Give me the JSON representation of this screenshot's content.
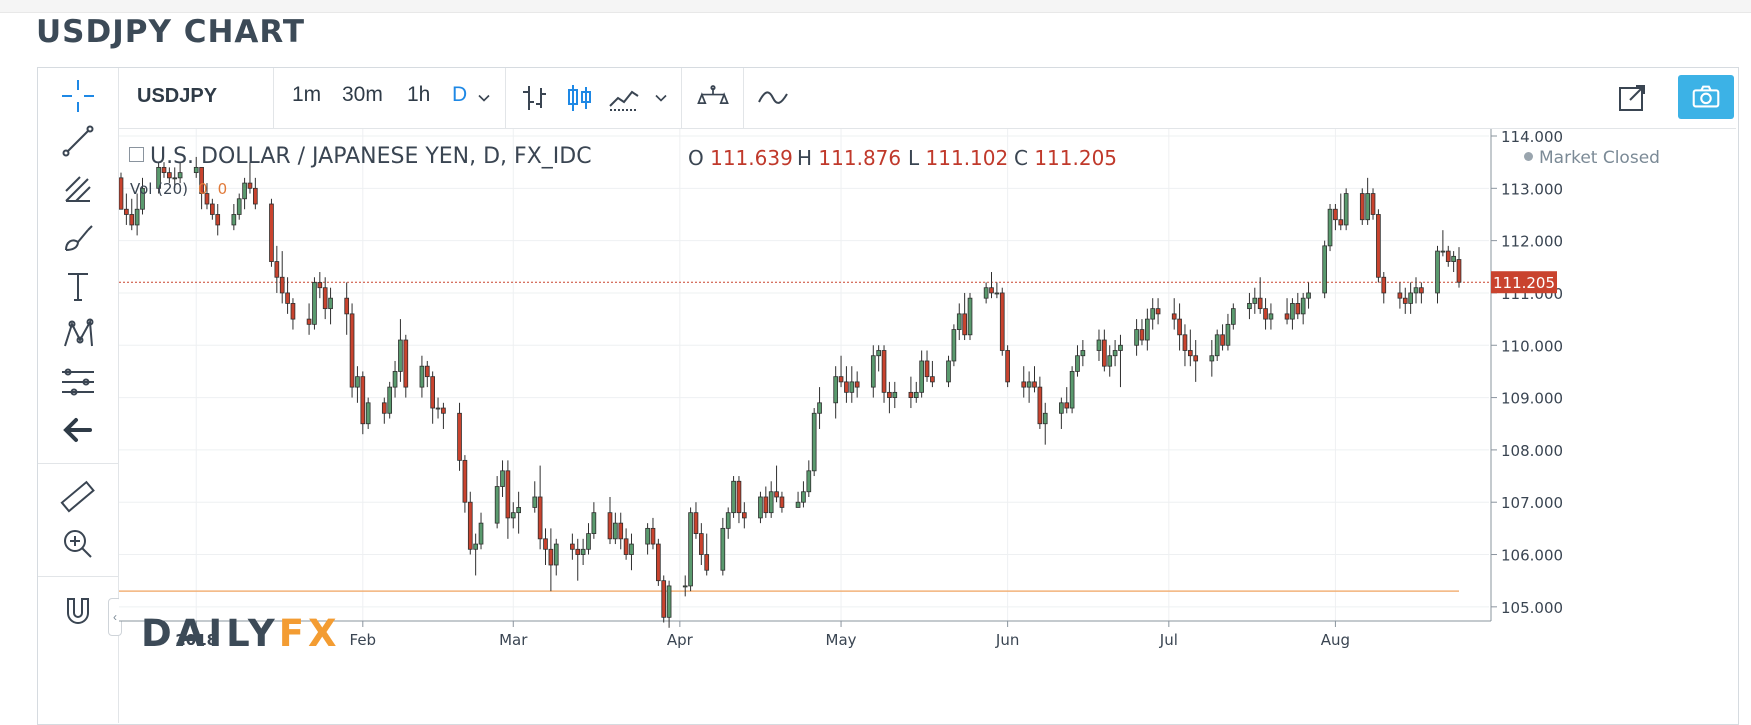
{
  "page": {
    "title": "USDJPY CHART"
  },
  "toolbar": {
    "symbol": "USDJPY",
    "timeframes": [
      "1m",
      "30m",
      "1h",
      "D"
    ],
    "active_timeframe": "D",
    "icons": [
      "chevron-down-icon",
      "bar-chart-icon",
      "candlestick-icon",
      "area-chart-icon",
      "chevron-down-icon",
      "compare-icon",
      "indicator-icon",
      "popout-icon",
      "camera-icon"
    ]
  },
  "left_tools": {
    "icons": [
      "crosshair-icon",
      "trendline-icon",
      "pitchfork-icon",
      "brush-icon",
      "text-icon",
      "pattern-icon",
      "fib-icon",
      "back-arrow-icon",
      "ruler-icon",
      "zoom-icon",
      "magnet-icon"
    ],
    "collapse_glyph": "‹"
  },
  "legend": {
    "series_title": "U.S. DOLLAR / JAPANESE YEN, D, FX_IDC",
    "open_label": "O",
    "open": "111.639",
    "high_label": "H",
    "high": "111.876",
    "low_label": "L",
    "low": "111.102",
    "close_label": "C",
    "close": "111.205",
    "volume_label": "Vol (20)",
    "volume_values": [
      "0",
      "0"
    ],
    "market_status": "Market Closed"
  },
  "logo": {
    "part1": "DAILY",
    "part2": "FX"
  },
  "colors": {
    "up": "#5a9a6e",
    "down": "#c9432e",
    "price_line": "#c9432e",
    "horizontal_line": "#f2b27a",
    "accent": "#1e88e5"
  },
  "chart_data": {
    "type": "candlestick",
    "title": "U.S. DOLLAR / JAPANESE YEN, D, FX_IDC",
    "x_ticks": [
      "2018",
      "Feb",
      "Mar",
      "Apr",
      "May",
      "Jun",
      "Jul",
      "Aug"
    ],
    "y_ticks": [
      "114.000",
      "113.000",
      "112.000",
      "111.000",
      "110.000",
      "109.000",
      "108.000",
      "107.000",
      "106.000",
      "105.000"
    ],
    "ylim": [
      104.5,
      114.0
    ],
    "last_price": 111.205,
    "last_price_label": "111.205",
    "horizontal_line": 105.3,
    "grid": true,
    "legend_position": "top-left",
    "candles": [
      [
        "2017-12-18",
        113.2,
        113.3,
        112.6,
        112.6
      ],
      [
        "2017-12-19",
        112.6,
        112.9,
        112.3,
        112.5
      ],
      [
        "2017-12-20",
        112.5,
        112.8,
        112.2,
        112.3
      ],
      [
        "2017-12-21",
        112.3,
        112.9,
        112.1,
        112.6
      ],
      [
        "2017-12-22",
        112.6,
        113.2,
        112.5,
        113.0
      ],
      [
        "2017-12-25",
        113.0,
        113.5,
        112.9,
        113.4
      ],
      [
        "2017-12-26",
        113.4,
        113.5,
        113.2,
        113.3
      ],
      [
        "2017-12-27",
        113.3,
        113.4,
        113.1,
        113.2
      ],
      [
        "2017-12-28",
        113.2,
        113.4,
        113.0,
        113.2
      ],
      [
        "2017-12-29",
        113.2,
        113.5,
        113.1,
        113.3
      ],
      [
        "2018-01-01",
        113.3,
        113.6,
        113.2,
        113.4
      ],
      [
        "2018-01-02",
        113.4,
        113.4,
        112.6,
        112.9
      ],
      [
        "2018-01-03",
        112.9,
        113.1,
        112.6,
        112.7
      ],
      [
        "2018-01-04",
        112.7,
        112.8,
        112.4,
        112.5
      ],
      [
        "2018-01-05",
        112.5,
        112.7,
        112.1,
        112.3
      ],
      [
        "2018-01-08",
        112.3,
        112.7,
        112.2,
        112.5
      ],
      [
        "2018-01-09",
        112.5,
        112.9,
        112.4,
        112.8
      ],
      [
        "2018-01-10",
        112.8,
        113.2,
        112.6,
        113.1
      ],
      [
        "2018-01-11",
        113.1,
        113.5,
        112.9,
        113.0
      ],
      [
        "2018-01-12",
        113.0,
        113.2,
        112.6,
        112.7
      ],
      [
        "2018-01-15",
        112.7,
        112.8,
        111.5,
        111.6
      ],
      [
        "2018-01-16",
        111.6,
        111.9,
        111.0,
        111.3
      ],
      [
        "2018-01-17",
        111.3,
        111.8,
        110.8,
        111.0
      ],
      [
        "2018-01-18",
        111.0,
        111.3,
        110.6,
        110.8
      ],
      [
        "2018-01-19",
        110.8,
        110.9,
        110.3,
        110.5
      ],
      [
        "2018-01-22",
        110.5,
        110.8,
        110.2,
        110.4
      ],
      [
        "2018-01-23",
        110.4,
        111.3,
        110.3,
        111.2
      ],
      [
        "2018-01-24",
        111.2,
        111.4,
        110.9,
        111.1
      ],
      [
        "2018-01-25",
        111.1,
        111.3,
        110.5,
        110.7
      ],
      [
        "2018-01-26",
        110.7,
        111.1,
        110.4,
        110.9
      ],
      [
        "2018-01-29",
        110.9,
        111.2,
        110.2,
        110.6
      ],
      [
        "2018-01-30",
        110.6,
        110.8,
        109.0,
        109.2
      ],
      [
        "2018-01-31",
        109.2,
        109.6,
        108.9,
        109.4
      ],
      [
        "2018-02-01",
        109.4,
        109.5,
        108.3,
        108.5
      ],
      [
        "2018-02-02",
        108.5,
        109.0,
        108.4,
        108.9
      ],
      [
        "2018-02-05",
        108.9,
        109.0,
        108.5,
        108.7
      ],
      [
        "2018-02-06",
        108.7,
        109.3,
        108.6,
        109.2
      ],
      [
        "2018-02-07",
        109.2,
        109.7,
        109.0,
        109.5
      ],
      [
        "2018-02-08",
        109.5,
        110.5,
        109.3,
        110.1
      ],
      [
        "2018-02-09",
        110.1,
        110.2,
        109.0,
        109.2
      ],
      [
        "2018-02-12",
        109.2,
        109.8,
        109.0,
        109.6
      ],
      [
        "2018-02-13",
        109.6,
        109.7,
        109.2,
        109.4
      ],
      [
        "2018-02-14",
        109.4,
        109.5,
        108.5,
        108.8
      ],
      [
        "2018-02-15",
        108.8,
        109.0,
        108.6,
        108.8
      ],
      [
        "2018-02-16",
        108.8,
        108.9,
        108.4,
        108.7
      ],
      [
        "2018-02-19",
        108.7,
        108.9,
        107.6,
        107.8
      ],
      [
        "2018-02-20",
        107.8,
        107.9,
        106.8,
        107.0
      ],
      [
        "2018-02-21",
        107.0,
        107.2,
        106.0,
        106.1
      ],
      [
        "2018-02-22",
        106.1,
        106.4,
        105.6,
        106.2
      ],
      [
        "2018-02-23",
        106.2,
        106.8,
        106.1,
        106.6
      ],
      [
        "2018-02-26",
        106.6,
        107.5,
        106.5,
        107.3
      ],
      [
        "2018-02-27",
        107.3,
        107.8,
        107.1,
        107.6
      ],
      [
        "2018-02-28",
        107.6,
        107.8,
        106.3,
        106.7
      ],
      [
        "2018-03-01",
        106.7,
        107.0,
        106.5,
        106.8
      ],
      [
        "2018-03-02",
        106.8,
        107.2,
        106.4,
        106.9
      ],
      [
        "2018-03-05",
        106.9,
        107.4,
        106.8,
        107.1
      ],
      [
        "2018-03-06",
        107.1,
        107.7,
        106.1,
        106.3
      ],
      [
        "2018-03-07",
        106.3,
        106.5,
        105.8,
        106.1
      ],
      [
        "2018-03-08",
        106.1,
        106.5,
        105.3,
        105.8
      ],
      [
        "2018-03-09",
        105.8,
        106.3,
        105.6,
        106.2
      ],
      [
        "2018-03-12",
        106.2,
        106.4,
        105.9,
        106.1
      ],
      [
        "2018-03-13",
        106.1,
        106.3,
        105.5,
        106.0
      ],
      [
        "2018-03-14",
        106.0,
        106.3,
        105.8,
        106.1
      ],
      [
        "2018-03-15",
        106.1,
        106.6,
        106.0,
        106.4
      ],
      [
        "2018-03-16",
        106.4,
        107.0,
        106.3,
        106.8
      ],
      [
        "2018-03-19",
        106.8,
        107.1,
        106.2,
        106.3
      ],
      [
        "2018-03-20",
        106.3,
        106.8,
        106.2,
        106.6
      ],
      [
        "2018-03-21",
        106.6,
        106.8,
        106.1,
        106.3
      ],
      [
        "2018-03-22",
        106.3,
        106.5,
        105.9,
        106.0
      ],
      [
        "2018-03-23",
        106.0,
        106.4,
        105.7,
        106.2
      ],
      [
        "2018-03-26",
        106.2,
        106.6,
        106.0,
        106.5
      ],
      [
        "2018-03-27",
        106.5,
        106.7,
        106.1,
        106.2
      ],
      [
        "2018-03-28",
        106.2,
        106.3,
        105.4,
        105.5
      ],
      [
        "2018-03-29",
        105.5,
        105.6,
        104.7,
        104.8
      ],
      [
        "2018-03-30",
        104.8,
        105.5,
        104.6,
        105.4
      ],
      [
        "2018-04-02",
        105.4,
        105.6,
        105.2,
        105.4
      ],
      [
        "2018-04-03",
        105.4,
        106.9,
        105.3,
        106.8
      ],
      [
        "2018-04-04",
        106.8,
        107.0,
        106.3,
        106.4
      ],
      [
        "2018-04-05",
        106.4,
        106.6,
        105.8,
        106.0
      ],
      [
        "2018-04-06",
        106.0,
        106.4,
        105.6,
        105.7
      ],
      [
        "2018-04-09",
        105.7,
        106.7,
        105.6,
        106.5
      ],
      [
        "2018-04-10",
        106.5,
        106.9,
        106.3,
        106.8
      ],
      [
        "2018-04-11",
        106.8,
        107.5,
        106.7,
        107.4
      ],
      [
        "2018-04-12",
        107.4,
        107.5,
        106.6,
        106.8
      ],
      [
        "2018-04-13",
        106.8,
        107.0,
        106.5,
        106.7
      ],
      [
        "2018-04-16",
        106.7,
        107.2,
        106.6,
        107.1
      ],
      [
        "2018-04-17",
        107.1,
        107.3,
        106.7,
        106.8
      ],
      [
        "2018-04-18",
        106.8,
        107.4,
        106.7,
        107.2
      ],
      [
        "2018-04-19",
        107.2,
        107.7,
        107.0,
        107.1
      ],
      [
        "2018-04-20",
        107.1,
        107.2,
        106.8,
        106.9
      ],
      [
        "2018-04-23",
        106.9,
        107.2,
        106.9,
        107.0
      ],
      [
        "2018-04-24",
        107.0,
        107.4,
        106.9,
        107.2
      ],
      [
        "2018-04-25",
        107.2,
        107.8,
        107.1,
        107.6
      ],
      [
        "2018-04-26",
        107.6,
        108.8,
        107.5,
        108.7
      ],
      [
        "2018-04-27",
        108.7,
        109.2,
        108.4,
        108.9
      ],
      [
        "2018-04-30",
        108.9,
        109.6,
        108.6,
        109.4
      ],
      [
        "2018-05-01",
        109.4,
        109.8,
        109.2,
        109.3
      ],
      [
        "2018-05-02",
        109.3,
        109.6,
        108.9,
        109.1
      ],
      [
        "2018-05-03",
        109.1,
        109.6,
        108.9,
        109.3
      ],
      [
        "2018-05-04",
        109.3,
        109.5,
        109.0,
        109.2
      ],
      [
        "2018-05-07",
        109.2,
        110.0,
        109.0,
        109.8
      ],
      [
        "2018-05-08",
        109.8,
        110.0,
        109.5,
        109.9
      ],
      [
        "2018-05-09",
        109.9,
        110.0,
        108.9,
        109.1
      ],
      [
        "2018-05-10",
        109.1,
        109.3,
        108.7,
        109.0
      ],
      [
        "2018-05-11",
        109.0,
        109.3,
        108.8,
        109.1
      ],
      [
        "2018-05-14",
        109.1,
        109.4,
        108.8,
        109.0
      ],
      [
        "2018-05-15",
        109.0,
        109.3,
        108.9,
        109.1
      ],
      [
        "2018-05-16",
        109.1,
        109.9,
        109.0,
        109.7
      ],
      [
        "2018-05-17",
        109.7,
        109.9,
        109.3,
        109.4
      ],
      [
        "2018-05-18",
        109.4,
        109.7,
        109.2,
        109.3
      ],
      [
        "2018-05-21",
        109.3,
        109.8,
        109.2,
        109.7
      ],
      [
        "2018-05-22",
        109.7,
        110.4,
        109.6,
        110.3
      ],
      [
        "2018-05-23",
        110.3,
        110.8,
        110.1,
        110.6
      ],
      [
        "2018-05-24",
        110.6,
        111.0,
        110.1,
        110.2
      ],
      [
        "2018-05-25",
        110.2,
        111.0,
        110.1,
        110.9
      ],
      [
        "2018-05-28",
        110.9,
        111.2,
        110.8,
        111.1
      ],
      [
        "2018-05-29",
        111.1,
        111.4,
        110.9,
        111.0
      ],
      [
        "2018-05-30",
        111.0,
        111.2,
        110.9,
        111.0
      ],
      [
        "2018-05-31",
        111.0,
        111.1,
        109.8,
        109.9
      ],
      [
        "2018-06-01",
        109.9,
        110.0,
        109.2,
        109.3
      ],
      [
        "2018-06-04",
        109.3,
        109.6,
        109.0,
        109.2
      ],
      [
        "2018-06-05",
        109.2,
        109.5,
        108.9,
        109.3
      ],
      [
        "2018-06-06",
        109.3,
        109.6,
        109.1,
        109.2
      ],
      [
        "2018-06-07",
        109.2,
        109.4,
        108.4,
        108.5
      ],
      [
        "2018-06-08",
        108.5,
        108.9,
        108.1,
        108.7
      ],
      [
        "2018-06-11",
        108.7,
        109.0,
        108.4,
        108.9
      ],
      [
        "2018-06-12",
        108.9,
        109.2,
        108.7,
        108.8
      ],
      [
        "2018-06-13",
        108.8,
        109.6,
        108.7,
        109.5
      ],
      [
        "2018-06-14",
        109.5,
        110.0,
        109.4,
        109.8
      ],
      [
        "2018-06-15",
        109.8,
        110.1,
        109.6,
        109.9
      ],
      [
        "2018-06-18",
        109.9,
        110.3,
        109.7,
        110.1
      ],
      [
        "2018-06-19",
        110.1,
        110.3,
        109.5,
        109.6
      ],
      [
        "2018-06-20",
        109.6,
        110.0,
        109.4,
        109.8
      ],
      [
        "2018-06-21",
        109.8,
        110.1,
        109.6,
        109.9
      ],
      [
        "2018-06-22",
        109.9,
        110.2,
        109.2,
        110.0
      ],
      [
        "2018-06-25",
        110.0,
        110.5,
        109.8,
        110.3
      ],
      [
        "2018-06-26",
        110.3,
        110.5,
        110.0,
        110.1
      ],
      [
        "2018-06-27",
        110.1,
        110.7,
        109.9,
        110.5
      ],
      [
        "2018-06-28",
        110.5,
        110.9,
        110.3,
        110.7
      ],
      [
        "2018-06-29",
        110.7,
        110.9,
        110.4,
        110.6
      ],
      [
        "2018-07-02",
        110.6,
        110.9,
        110.3,
        110.5
      ],
      [
        "2018-07-03",
        110.5,
        110.8,
        109.9,
        110.2
      ],
      [
        "2018-07-04",
        110.2,
        110.4,
        109.6,
        109.9
      ],
      [
        "2018-07-05",
        109.9,
        110.3,
        109.6,
        109.8
      ],
      [
        "2018-07-06",
        109.8,
        110.1,
        109.3,
        109.7
      ],
      [
        "2018-07-09",
        109.7,
        110.1,
        109.4,
        109.8
      ],
      [
        "2018-07-10",
        109.8,
        110.3,
        109.7,
        110.2
      ],
      [
        "2018-07-11",
        110.2,
        110.4,
        109.9,
        110.0
      ],
      [
        "2018-07-12",
        110.0,
        110.6,
        109.9,
        110.4
      ],
      [
        "2018-07-13",
        110.4,
        110.8,
        110.3,
        110.7
      ],
      [
        "2018-07-16",
        110.7,
        111.0,
        110.5,
        110.8
      ],
      [
        "2018-07-17",
        110.8,
        111.1,
        110.6,
        110.9
      ],
      [
        "2018-07-18",
        110.9,
        111.3,
        110.6,
        110.7
      ],
      [
        "2018-07-19",
        110.7,
        110.9,
        110.3,
        110.5
      ],
      [
        "2018-07-20",
        110.5,
        110.8,
        110.3,
        110.6
      ],
      [
        "2018-07-23",
        110.6,
        110.9,
        110.4,
        110.5
      ],
      [
        "2018-07-24",
        110.5,
        110.9,
        110.3,
        110.8
      ],
      [
        "2018-07-25",
        110.8,
        111.0,
        110.5,
        110.6
      ],
      [
        "2018-07-26",
        110.6,
        111.0,
        110.4,
        110.9
      ],
      [
        "2018-07-27",
        110.9,
        111.2,
        110.7,
        111.0
      ],
      [
        "2018-07-30",
        111.0,
        112.0,
        110.9,
        111.9
      ],
      [
        "2018-07-31",
        111.9,
        112.7,
        111.8,
        112.6
      ],
      [
        "2018-08-01",
        112.6,
        112.7,
        112.2,
        112.4
      ],
      [
        "2018-08-02",
        112.4,
        112.9,
        112.2,
        112.3
      ],
      [
        "2018-08-03",
        112.3,
        113.0,
        112.2,
        112.9
      ],
      [
        "2018-08-06",
        112.9,
        113.0,
        112.3,
        112.4
      ],
      [
        "2018-08-07",
        112.4,
        113.2,
        112.3,
        112.9
      ],
      [
        "2018-08-08",
        112.9,
        113.0,
        112.4,
        112.5
      ],
      [
        "2018-08-09",
        112.5,
        112.6,
        111.2,
        111.3
      ],
      [
        "2018-08-10",
        111.3,
        111.4,
        110.8,
        111.0
      ],
      [
        "2018-08-13",
        111.0,
        111.2,
        110.7,
        110.9
      ],
      [
        "2018-08-14",
        110.9,
        111.1,
        110.6,
        110.8
      ],
      [
        "2018-08-15",
        110.8,
        111.2,
        110.6,
        111.0
      ],
      [
        "2018-08-16",
        111.0,
        111.3,
        110.8,
        111.1
      ],
      [
        "2018-08-17",
        111.1,
        111.2,
        110.8,
        111.0
      ],
      [
        "2018-08-20",
        111.0,
        111.9,
        110.8,
        111.8
      ],
      [
        "2018-08-21",
        111.8,
        112.2,
        111.7,
        111.8
      ],
      [
        "2018-08-22",
        111.8,
        111.9,
        111.5,
        111.6
      ],
      [
        "2018-08-23",
        111.6,
        111.8,
        111.4,
        111.7
      ],
      [
        "2018-08-24",
        111.639,
        111.876,
        111.102,
        111.205
      ]
    ]
  }
}
